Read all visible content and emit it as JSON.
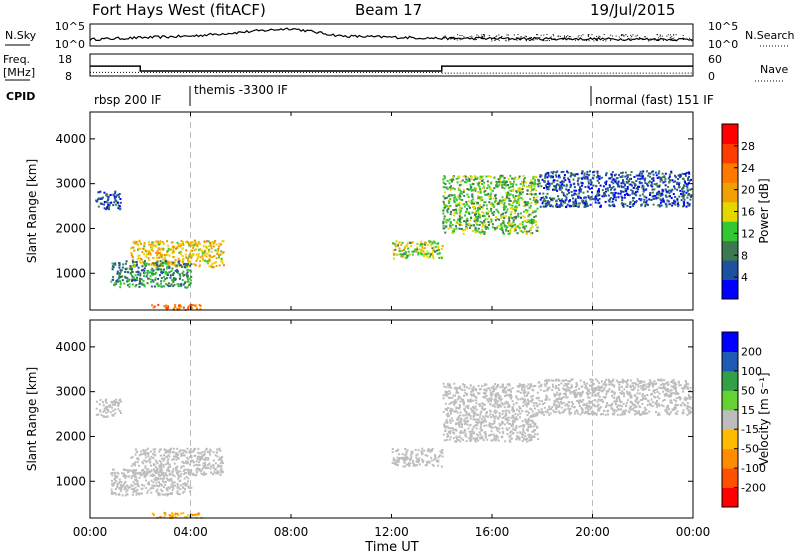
{
  "header": {
    "title": "Fort Hays West (fitACF)",
    "beam": "Beam 17",
    "date": "19/Jul/2015"
  },
  "noise_panel": {
    "left_label": "N.Sky",
    "right_label": "N.Search",
    "left_ticks": [
      "10^5",
      "10^0"
    ],
    "right_ticks": [
      "10^5",
      "10^0"
    ]
  },
  "freq_panel": {
    "left_label_1": "Freq.",
    "left_label_2": "[MHz]",
    "left_ticks": [
      "18",
      "8"
    ],
    "right_label": "Nave",
    "right_ticks": [
      "60",
      "0"
    ]
  },
  "cpid": {
    "label": "CPID",
    "segments": [
      {
        "text": "rbsp 200 IF",
        "start_hour": 0
      },
      {
        "text": "themis -3300 IF",
        "start_hour": 4
      },
      {
        "text": "normal (fast) 151 IF",
        "start_hour": 20
      }
    ]
  },
  "colors": {
    "power": [
      "#0000ff",
      "#1e50a0",
      "#3c7850",
      "#32c832",
      "#e6d600",
      "#f0a000",
      "#ff7800",
      "#ff3c00",
      "#ff0000"
    ],
    "velocity": [
      "#ff0000",
      "#ff5000",
      "#ff8c00",
      "#ffbb00",
      "#bdbdbd",
      "#64d232",
      "#32a046",
      "#1e5ab4",
      "#0000ff"
    ]
  },
  "power_panel": {
    "ylabel": "Slant Range [km]",
    "colorbar_label": "Power [dB]",
    "colorbar_ticks": [
      "28",
      "24",
      "20",
      "16",
      "12",
      "8",
      "4"
    ]
  },
  "velocity_panel": {
    "ylabel": "Slant Range [km]",
    "colorbar_label": "Velocity [m s⁻¹]",
    "colorbar_ticks": [
      "200",
      "100",
      "50",
      "15",
      "-15",
      "-50",
      "-100",
      "-200"
    ]
  },
  "xaxis": {
    "label": "Time UT",
    "ticks": [
      "00:00",
      "04:00",
      "08:00",
      "12:00",
      "16:00",
      "20:00",
      "00:00"
    ]
  },
  "chart_data": {
    "type": "heatmap",
    "title": "Fort Hays West (fitACF)",
    "subtitle": "Beam 17",
    "date": "19/Jul/2015",
    "x_range_hours": [
      0,
      24
    ],
    "y_range_km": [
      180,
      4600
    ],
    "y_ticks_km": [
      1000,
      2000,
      3000,
      4000
    ],
    "freq_mhz": [
      {
        "start_hour": 0,
        "end_hour": 2,
        "value": 12.5
      },
      {
        "start_hour": 2,
        "end_hour": 14,
        "value": 10.3
      },
      {
        "start_hour": 14,
        "end_hour": 24,
        "value": 12.5
      }
    ],
    "nave": [
      {
        "start_hour": 0,
        "end_hour": 14,
        "value": 10
      },
      {
        "start_hour": 14,
        "end_hour": 24,
        "value": 8
      }
    ],
    "noise_sky": [
      {
        "hour": 0,
        "value": 0.3
      },
      {
        "hour": 4,
        "value": 0.45
      },
      {
        "hour": 8,
        "value": 0.8
      },
      {
        "hour": 10,
        "value": 0.45
      },
      {
        "hour": 14,
        "value": 0.35
      },
      {
        "hour": 20,
        "value": 0.32
      },
      {
        "hour": 24,
        "value": 0.3
      }
    ],
    "power_echoes": [
      {
        "region": "early far range",
        "hour_range": [
          0.2,
          1.2
        ],
        "range_km": [
          2450,
          2850
        ],
        "power_db": 6
      },
      {
        "region": "main rising band",
        "hour_range": [
          1.6,
          5.3
        ],
        "range_km": [
          1150,
          1750
        ],
        "power_db": 20
      },
      {
        "region": "near range patch",
        "hour_range": [
          0.8,
          4.0
        ],
        "range_km": [
          700,
          1300
        ],
        "power_db": 10
      },
      {
        "region": "ground scatter",
        "hour_range": [
          2.4,
          4.4
        ],
        "range_km": [
          200,
          320
        ],
        "power_db": 26
      },
      {
        "region": "midday band",
        "hour_range": [
          12.0,
          14.0
        ],
        "range_km": [
          1350,
          1750
        ],
        "power_db": 16
      },
      {
        "region": "afternoon arc",
        "hour_range": [
          14.0,
          17.8
        ],
        "range_km": [
          1900,
          3200
        ],
        "power_db": 14
      },
      {
        "region": "evening band",
        "hour_range": [
          17.8,
          23.9
        ],
        "range_km": [
          2500,
          3300
        ],
        "power_db": 6
      }
    ],
    "velocity_echoes": [
      {
        "region": "early far range",
        "hour_range": [
          0.2,
          1.2
        ],
        "range_km": [
          2450,
          2850
        ],
        "velocity_ms": 0
      },
      {
        "region": "main rising band",
        "hour_range": [
          1.6,
          5.3
        ],
        "range_km": [
          1150,
          1750
        ],
        "velocity_ms": 0
      },
      {
        "region": "near range patch",
        "hour_range": [
          0.8,
          4.0
        ],
        "range_km": [
          700,
          1300
        ],
        "velocity_ms": 0
      },
      {
        "region": "ground scatter",
        "hour_range": [
          2.4,
          4.4
        ],
        "range_km": [
          200,
          320
        ],
        "velocity_ms": -50
      },
      {
        "region": "midday band",
        "hour_range": [
          12.0,
          14.0
        ],
        "range_km": [
          1350,
          1750
        ],
        "velocity_ms": 0
      },
      {
        "region": "afternoon arc",
        "hour_range": [
          14.0,
          17.8
        ],
        "range_km": [
          1900,
          3200
        ],
        "velocity_ms": 0
      },
      {
        "region": "evening band",
        "hour_range": [
          17.8,
          23.9
        ],
        "range_km": [
          2500,
          3300
        ],
        "velocity_ms": 0
      }
    ]
  }
}
